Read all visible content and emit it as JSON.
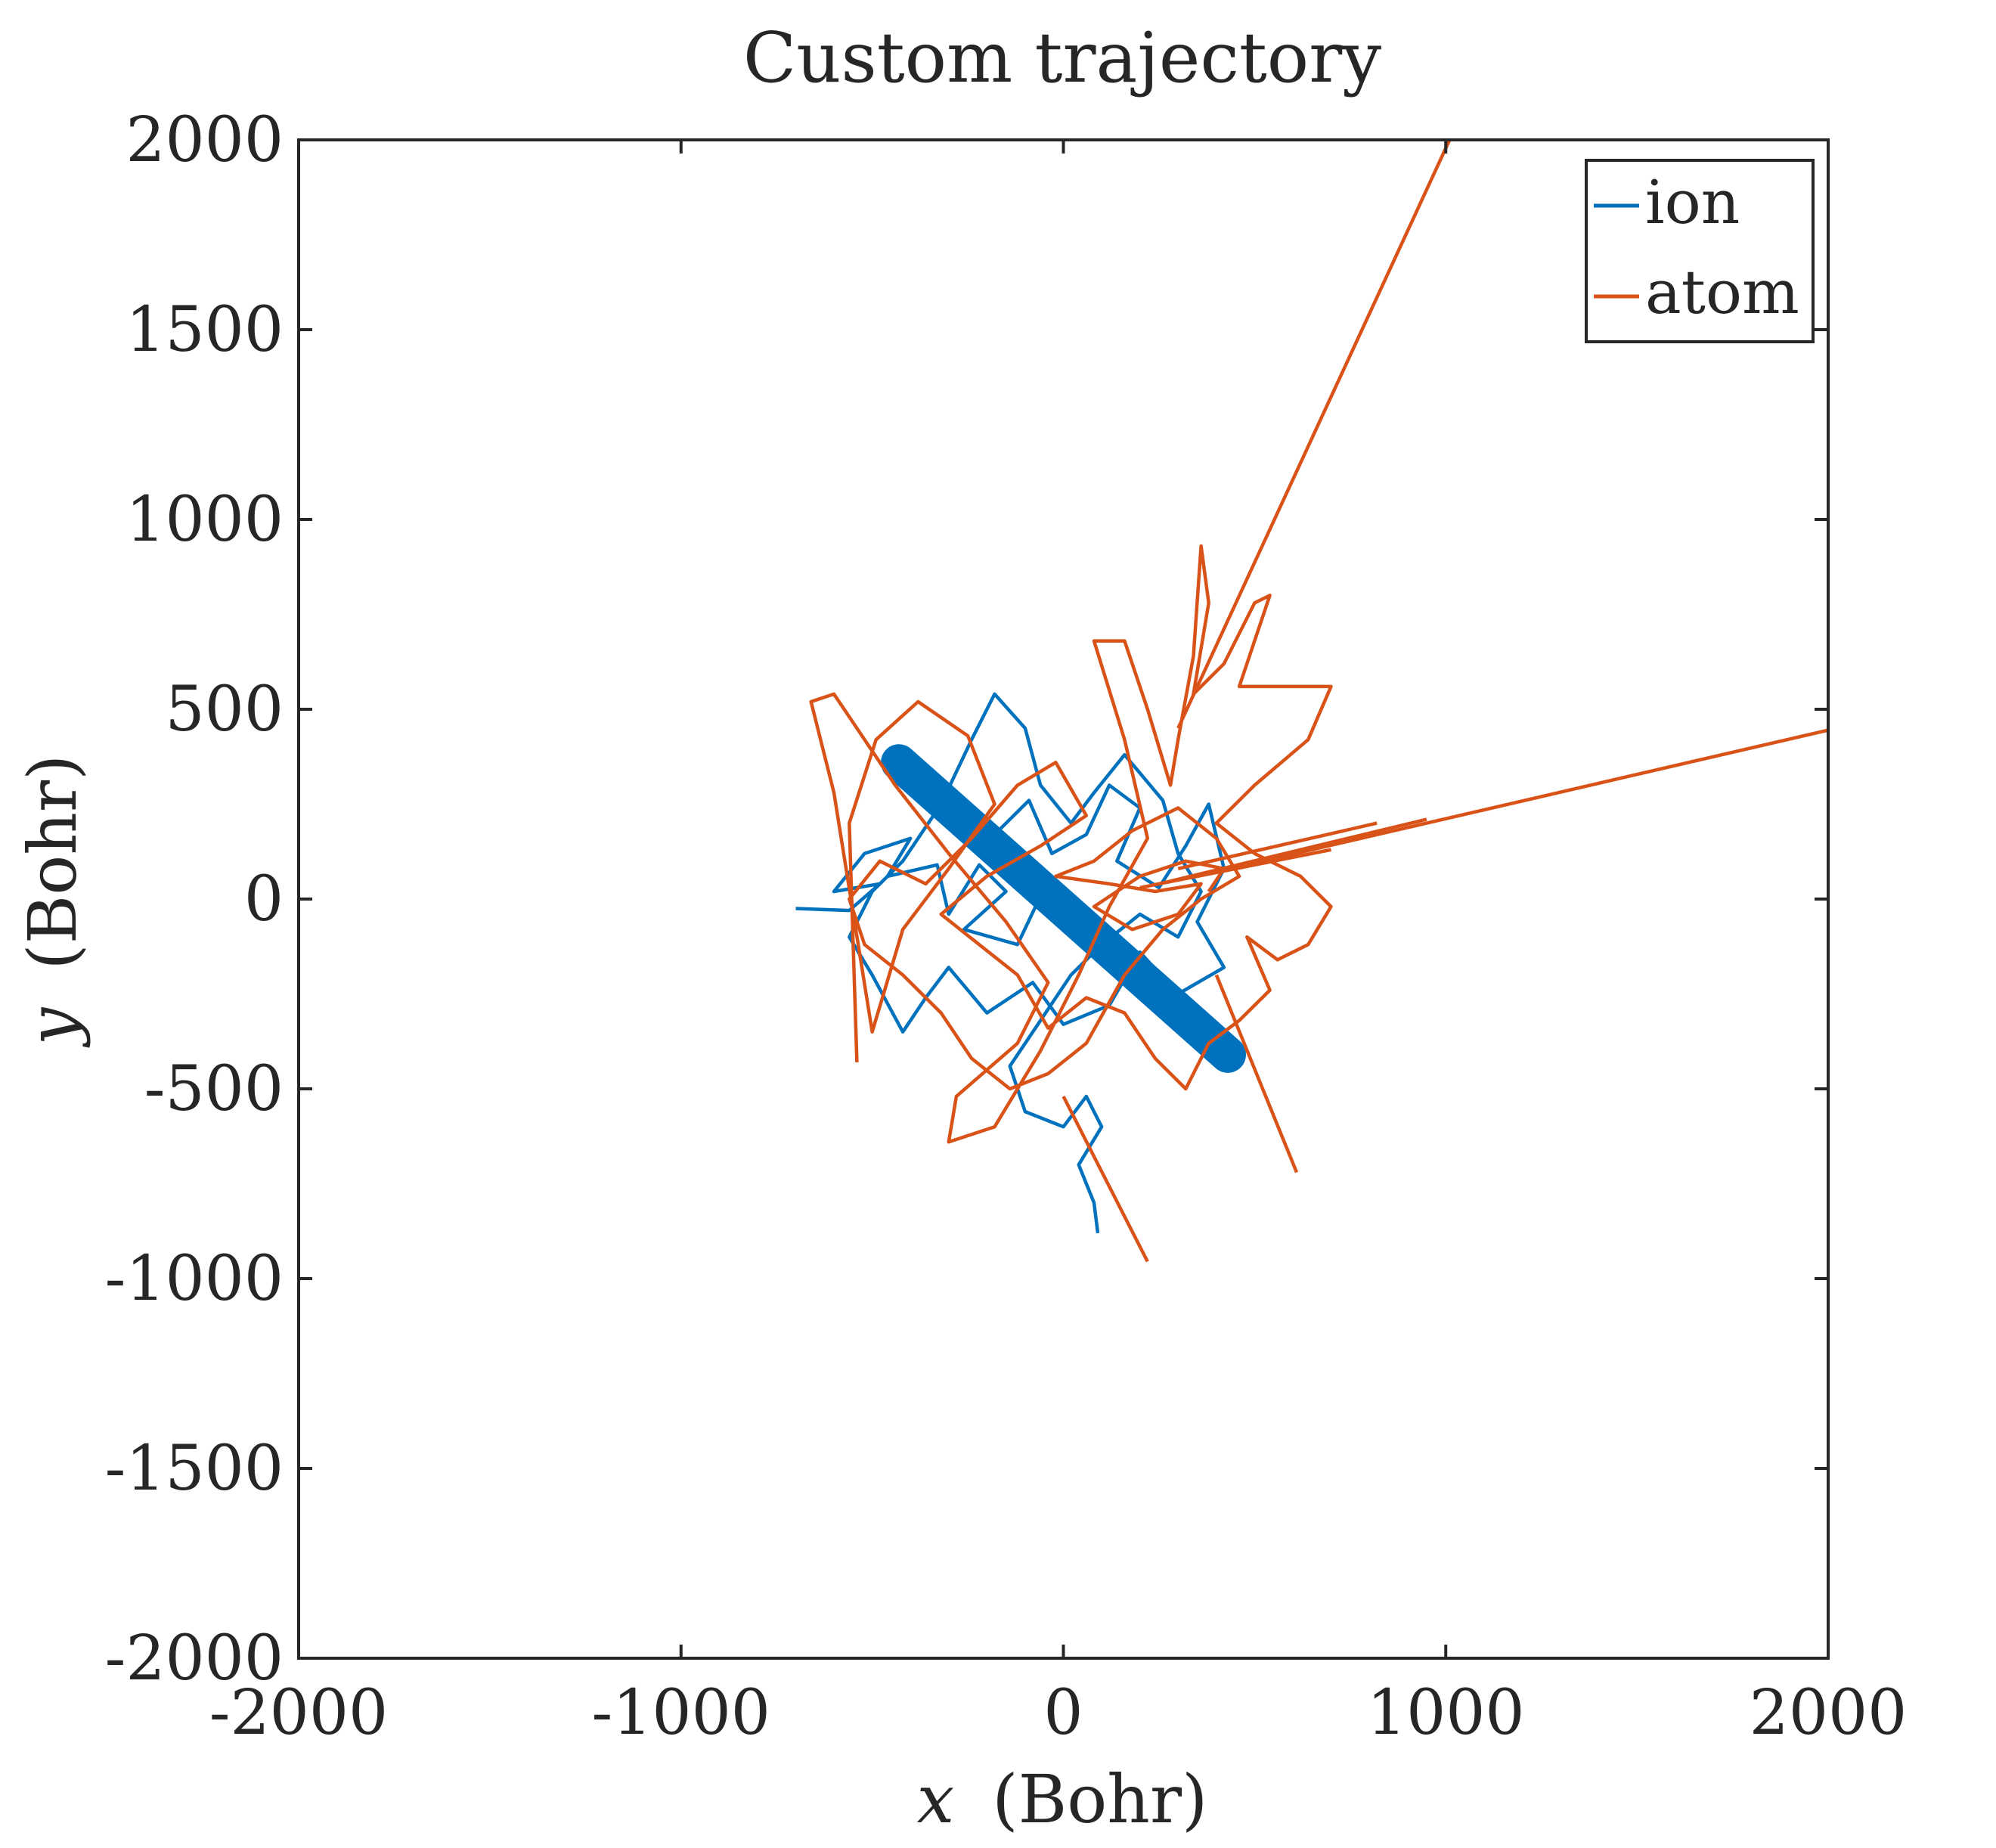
{
  "chart_data": {
    "type": "line",
    "title": "Custom trajectory",
    "xlabel": "x (Bohr)",
    "xlabel_var": "x",
    "xlabel_unit": "(Bohr)",
    "ylabel": "y (Bohr)",
    "ylabel_var": "y",
    "ylabel_unit": "(Bohr)",
    "xlim": [
      -2000,
      2000
    ],
    "ylim": [
      -2000,
      2000
    ],
    "xticks": [
      -2000,
      -1000,
      0,
      1000,
      2000
    ],
    "yticks": [
      -2000,
      -1500,
      -1000,
      -500,
      0,
      500,
      1000,
      1500,
      2000
    ],
    "xtick_labels": [
      "-2000",
      "-1000",
      "0",
      "1000",
      "2000"
    ],
    "ytick_labels": [
      "-2000",
      "-1500",
      "-1000",
      "-500",
      "0",
      "500",
      "1000",
      "1500",
      "2000"
    ],
    "grid": false,
    "legend_position": "top-right",
    "series": [
      {
        "name": "ion",
        "color": "#0072BD",
        "band": {
          "from": [
            -430,
            360
          ],
          "to": [
            430,
            -410
          ],
          "width_bohr": 95
        },
        "points": [
          [
            -700,
            -25
          ],
          [
            -560,
            -30
          ],
          [
            -480,
            40
          ],
          [
            -600,
            20
          ],
          [
            -520,
            120
          ],
          [
            -400,
            160
          ],
          [
            -460,
            60
          ],
          [
            -330,
            90
          ],
          [
            -300,
            -40
          ],
          [
            -220,
            90
          ],
          [
            -150,
            20
          ],
          [
            -260,
            -80
          ],
          [
            -120,
            -120
          ],
          [
            -40,
            50
          ],
          [
            -180,
            170
          ],
          [
            -90,
            260
          ],
          [
            -30,
            120
          ],
          [
            60,
            170
          ],
          [
            120,
            300
          ],
          [
            200,
            240
          ],
          [
            140,
            100
          ],
          [
            250,
            30
          ],
          [
            320,
            140
          ],
          [
            380,
            250
          ],
          [
            420,
            80
          ],
          [
            350,
            -60
          ],
          [
            420,
            -180
          ],
          [
            300,
            -250
          ],
          [
            200,
            -140
          ],
          [
            120,
            -280
          ],
          [
            0,
            -330
          ],
          [
            -80,
            -220
          ],
          [
            -200,
            -300
          ],
          [
            -300,
            -180
          ],
          [
            -360,
            -260
          ],
          [
            -420,
            -350
          ],
          [
            -500,
            -200
          ],
          [
            -560,
            -100
          ],
          [
            -500,
            20
          ],
          [
            -420,
            100
          ],
          [
            -320,
            250
          ],
          [
            -240,
            420
          ],
          [
            -180,
            540
          ],
          [
            -100,
            450
          ],
          [
            -60,
            300
          ],
          [
            20,
            200
          ],
          [
            80,
            280
          ],
          [
            160,
            380
          ],
          [
            260,
            260
          ],
          [
            300,
            120
          ],
          [
            360,
            20
          ],
          [
            300,
            -100
          ],
          [
            200,
            -40
          ],
          [
            100,
            -120
          ],
          [
            20,
            -200
          ],
          [
            -60,
            -320
          ],
          [
            -140,
            -440
          ],
          [
            -100,
            -560
          ],
          [
            0,
            -600
          ],
          [
            60,
            -520
          ],
          [
            100,
            -600
          ],
          [
            40,
            -700
          ],
          [
            80,
            -800
          ],
          [
            90,
            -880
          ]
        ]
      },
      {
        "name": "atom",
        "color": "#D95319",
        "rays": [
          [
            [
              300,
              450
            ],
            [
              1010,
              2000
            ]
          ],
          [
            [
              350,
              60
            ],
            [
              2000,
              445
            ]
          ],
          [
            [
              250,
              40
            ],
            [
              950,
              210
            ]
          ],
          [
            [
              300,
              80
            ],
            [
              820,
              200
            ]
          ],
          [
            [
              200,
              30
            ],
            [
              700,
              130
            ]
          ],
          [
            [
              0,
              -520
            ],
            [
              220,
              -955
            ]
          ],
          [
            [
              400,
              -200
            ],
            [
              610,
              -720
            ]
          ]
        ],
        "points": [
          [
            -540,
            -430
          ],
          [
            -560,
            200
          ],
          [
            -490,
            420
          ],
          [
            -380,
            520
          ],
          [
            -250,
            430
          ],
          [
            -180,
            250
          ],
          [
            -300,
            80
          ],
          [
            -420,
            -80
          ],
          [
            -500,
            -350
          ],
          [
            -600,
            280
          ],
          [
            -660,
            520
          ],
          [
            -600,
            540
          ],
          [
            -440,
            300
          ],
          [
            -300,
            120
          ],
          [
            -150,
            -60
          ],
          [
            -40,
            -220
          ],
          [
            -120,
            -380
          ],
          [
            -280,
            -520
          ],
          [
            -300,
            -640
          ],
          [
            -180,
            -600
          ],
          [
            -60,
            -400
          ],
          [
            40,
            -200
          ],
          [
            120,
            -20
          ],
          [
            220,
            160
          ],
          [
            160,
            420
          ],
          [
            80,
            680
          ],
          [
            160,
            680
          ],
          [
            220,
            500
          ],
          [
            280,
            300
          ],
          [
            300,
            420
          ],
          [
            340,
            640
          ],
          [
            360,
            930
          ],
          [
            380,
            780
          ],
          [
            340,
            540
          ],
          [
            420,
            620
          ],
          [
            500,
            780
          ],
          [
            540,
            800
          ],
          [
            460,
            560
          ],
          [
            600,
            560
          ],
          [
            700,
            560
          ],
          [
            640,
            420
          ],
          [
            500,
            300
          ],
          [
            400,
            200
          ],
          [
            500,
            120
          ],
          [
            620,
            60
          ],
          [
            700,
            -20
          ],
          [
            640,
            -120
          ],
          [
            560,
            -160
          ],
          [
            480,
            -100
          ],
          [
            540,
            -240
          ],
          [
            460,
            -320
          ],
          [
            380,
            -380
          ],
          [
            320,
            -500
          ],
          [
            240,
            -420
          ],
          [
            160,
            -300
          ],
          [
            60,
            -260
          ],
          [
            -40,
            -340
          ],
          [
            -120,
            -200
          ],
          [
            -220,
            -120
          ],
          [
            -320,
            -40
          ],
          [
            -200,
            60
          ],
          [
            -60,
            140
          ],
          [
            60,
            220
          ],
          [
            -20,
            360
          ],
          [
            -120,
            300
          ],
          [
            -240,
            160
          ],
          [
            -360,
            40
          ],
          [
            -480,
            100
          ],
          [
            -560,
            0
          ],
          [
            -520,
            -120
          ],
          [
            -420,
            -200
          ],
          [
            -320,
            -300
          ],
          [
            -240,
            -420
          ],
          [
            -140,
            -500
          ],
          [
            -40,
            -460
          ],
          [
            60,
            -380
          ],
          [
            160,
            -200
          ],
          [
            260,
            -80
          ],
          [
            360,
            0
          ],
          [
            460,
            60
          ],
          [
            400,
            160
          ],
          [
            300,
            240
          ],
          [
            180,
            180
          ],
          [
            80,
            100
          ],
          [
            -20,
            60
          ],
          [
            120,
            40
          ],
          [
            240,
            20
          ],
          [
            360,
            40
          ],
          [
            300,
            -40
          ],
          [
            180,
            -80
          ],
          [
            80,
            -20
          ],
          [
            200,
            60
          ],
          [
            320,
            100
          ],
          [
            420,
            80
          ],
          [
            380,
            20
          ]
        ]
      }
    ]
  }
}
